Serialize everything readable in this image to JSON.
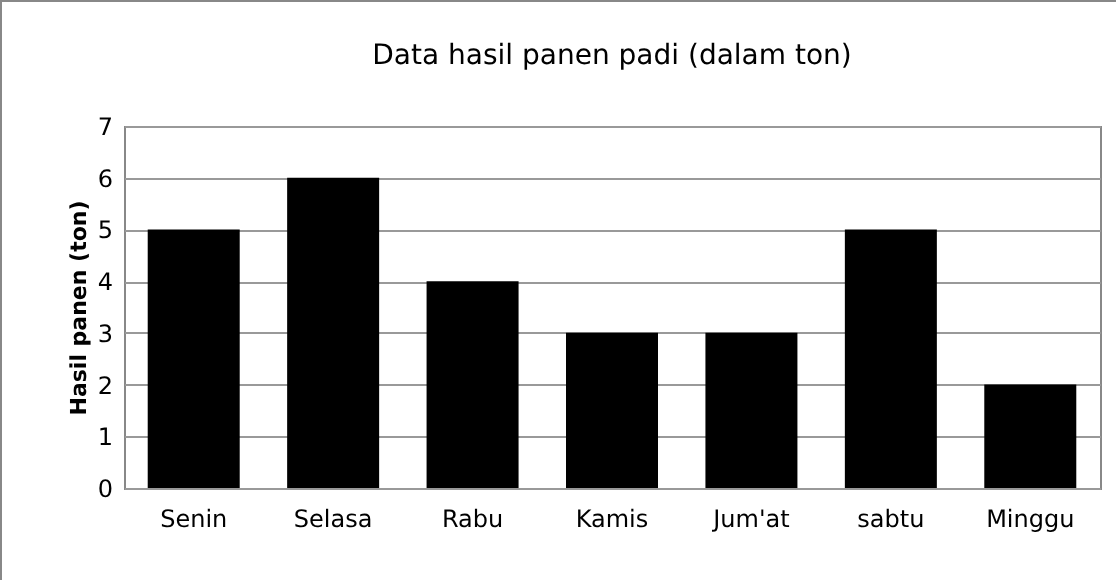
{
  "chart_data": {
    "type": "bar",
    "title": "Data hasil panen padi (dalam ton)",
    "ylabel": "Hasil panen (ton)",
    "categories": [
      "Senin",
      "Selasa",
      "Rabu",
      "Kamis",
      "Jum'at",
      "sabtu",
      "Minggu"
    ],
    "values": [
      5,
      6,
      4,
      3,
      3,
      5,
      2
    ],
    "color": "#000000",
    "ylim": [
      0,
      7
    ],
    "yticks": [
      0,
      1,
      2,
      3,
      4,
      5,
      6,
      7
    ],
    "grid": true
  }
}
